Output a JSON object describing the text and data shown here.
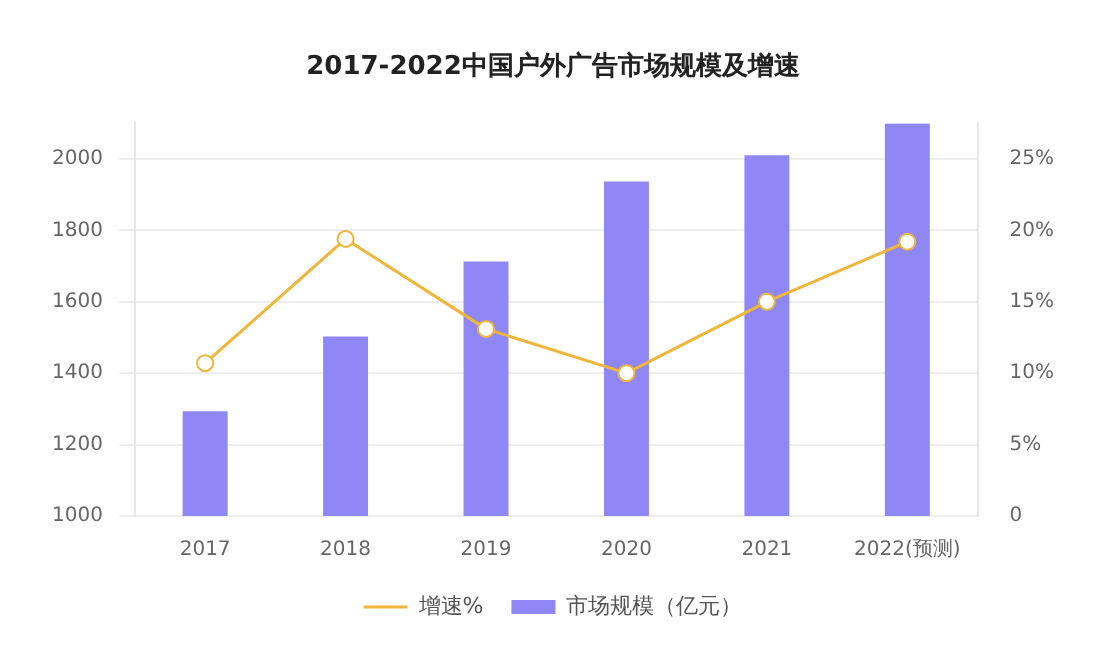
{
  "chart_data": {
    "type": "bar",
    "title": "2017-2022中国户外广告市场规模及增速",
    "categories": [
      "2017",
      "2018",
      "2019",
      "2020",
      "2021",
      "2022(预测)"
    ],
    "series": [
      {
        "name": "增速%",
        "type": "line",
        "axis": "y2",
        "color": "#f0b63c",
        "values": [
          10.7,
          19.4,
          13.1,
          10.0,
          15.0,
          19.2
        ]
      },
      {
        "name": "市场规模（亿元）",
        "color": "#8f87f5",
        "values": [
          1293,
          1503,
          1713,
          1937,
          2010,
          2099
        ]
      }
    ],
    "ylim": [
      1000,
      2100
    ],
    "yticks": [
      1000,
      1200,
      1400,
      1600,
      1800,
      2000
    ],
    "y2lim": [
      0,
      27.5
    ],
    "y2ticks": [
      {
        "value": 0,
        "label": "0"
      },
      {
        "value": 5,
        "label": "5%"
      },
      {
        "value": 10,
        "label": "10%"
      },
      {
        "value": 15,
        "label": "15%"
      },
      {
        "value": 20,
        "label": "20%"
      },
      {
        "value": 25,
        "label": "25%"
      }
    ],
    "grid": "y",
    "legend": "bottom",
    "marker": "circle",
    "line_style": "solid"
  }
}
